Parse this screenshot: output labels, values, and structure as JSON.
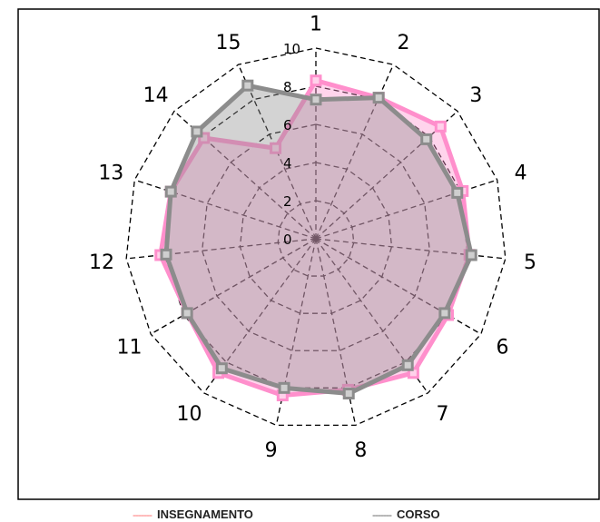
{
  "chart_data": {
    "type": "radar",
    "categories": [
      "1",
      "2",
      "3",
      "4",
      "5",
      "6",
      "7",
      "8",
      "9",
      "10",
      "11",
      "12",
      "13",
      "14",
      "15"
    ],
    "rlim": [
      0,
      10
    ],
    "radial_ticks": [
      "0",
      "2",
      "4",
      "6",
      "8",
      "10"
    ],
    "grid": true,
    "legend_position": "bottom",
    "series": [
      {
        "name": "INSEGNAMENTO",
        "color": "#ff8fcc",
        "values": [
          8.3,
          8.1,
          8.8,
          8.1,
          8.1,
          8.0,
          8.7,
          8.1,
          8.4,
          8.7,
          7.8,
          8.2,
          8.0,
          7.9,
          5.2
        ]
      },
      {
        "name": "CORSO",
        "color": "#8c8c8c",
        "values": [
          7.3,
          8.1,
          7.8,
          7.8,
          8.2,
          7.8,
          8.2,
          8.3,
          8.0,
          8.4,
          7.8,
          7.9,
          8.0,
          8.4,
          8.8
        ]
      }
    ]
  },
  "legend": {
    "insegnamento_dash": "-------",
    "insegnamento_label": "INSEGNAMENTO",
    "corso_dash": "-------",
    "corso_label": "CORSO"
  }
}
